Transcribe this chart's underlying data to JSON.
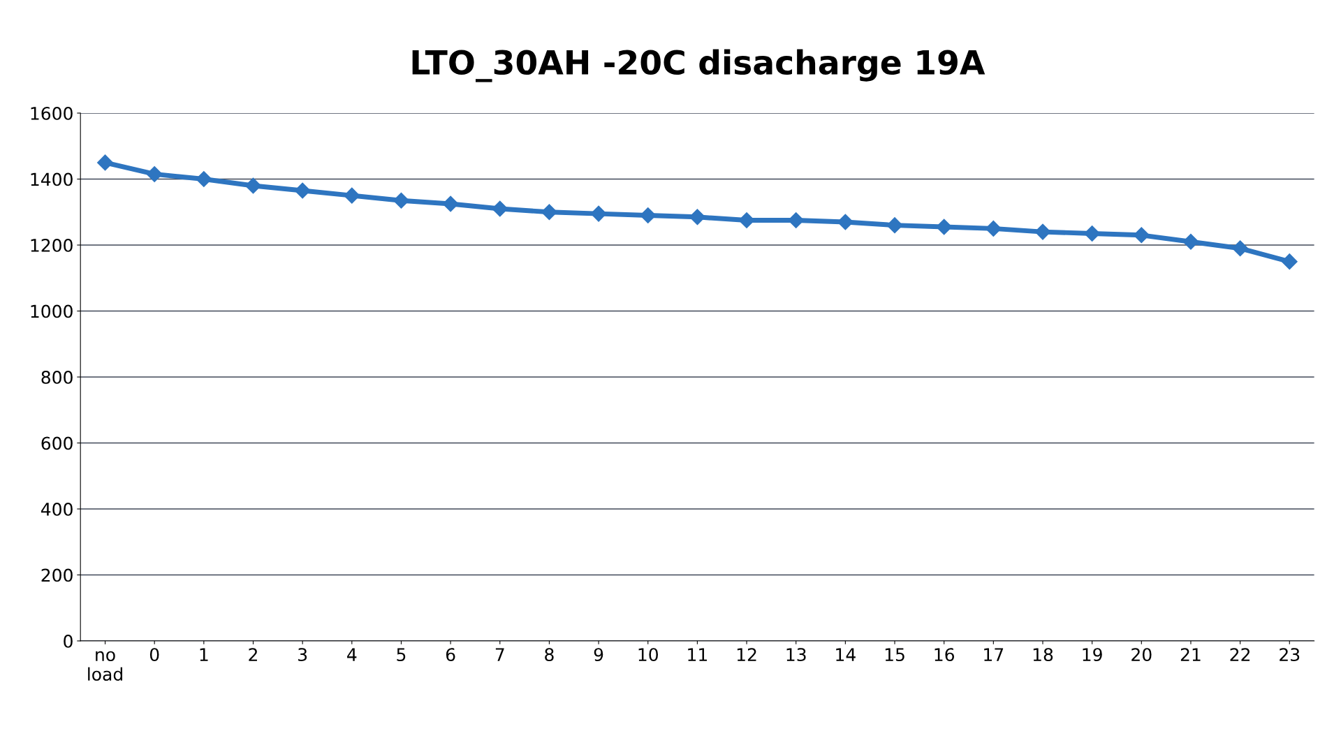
{
  "chart_data": {
    "type": "line",
    "title": "LTO_30AH -20C disacharge 19A",
    "categories": [
      "no\nload",
      "0",
      "1",
      "2",
      "3",
      "4",
      "5",
      "6",
      "7",
      "8",
      "9",
      "10",
      "11",
      "12",
      "13",
      "14",
      "15",
      "16",
      "17",
      "18",
      "19",
      "20",
      "21",
      "22",
      "23"
    ],
    "series": [
      {
        "color": "#2e75c0",
        "values": [
          1450,
          1415,
          1400,
          1380,
          1365,
          1350,
          1335,
          1325,
          1310,
          1300,
          1295,
          1290,
          1285,
          1275,
          1275,
          1270,
          1260,
          1255,
          1250,
          1240,
          1235,
          1230,
          1210,
          1190,
          1150
        ]
      }
    ],
    "ylim": [
      0,
      1600
    ],
    "yticks": [
      0,
      200,
      400,
      600,
      800,
      1000,
      1200,
      1400,
      1600
    ],
    "grid": "y",
    "marker": "diamond",
    "line_style": "solid",
    "legend": false
  }
}
